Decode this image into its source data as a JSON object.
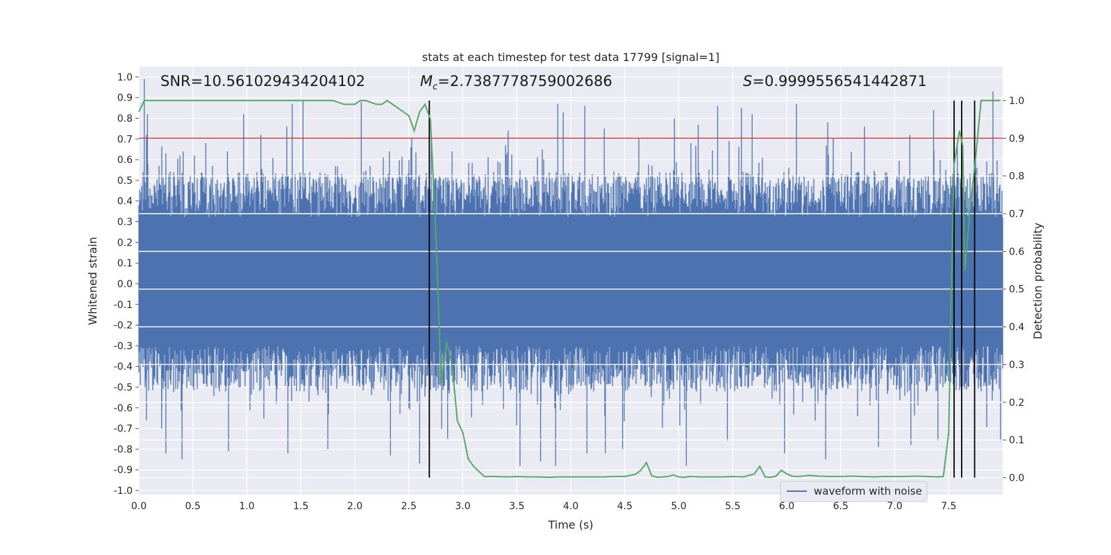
{
  "chart_data": {
    "type": "line",
    "title": "stats at each timestep for test data 17799 [signal=1]",
    "xlabel": "Time (s)",
    "ylabel": "Whitened strain",
    "y2label": "Detection probability",
    "xlim": [
      0.0,
      8.0
    ],
    "ylim": [
      -1.02,
      1.05
    ],
    "y2lim": [
      -0.045,
      1.09
    ],
    "x_ticks": [
      "0.0",
      "0.5",
      "1.0",
      "1.5",
      "2.0",
      "2.5",
      "3.0",
      "3.5",
      "4.0",
      "4.5",
      "5.0",
      "5.5",
      "6.0",
      "6.5",
      "7.0",
      "7.5"
    ],
    "y_ticks": [
      "1.0",
      "0.9",
      "0.8",
      "0.7",
      "0.6",
      "0.5",
      "0.4",
      "0.3",
      "0.2",
      "0.1",
      "0.0",
      "-0.1",
      "-0.2",
      "-0.3",
      "-0.4",
      "-0.5",
      "-0.6",
      "-0.7",
      "-0.8",
      "-0.9",
      "-1.0"
    ],
    "y2_ticks": [
      "1.0",
      "0.9",
      "0.8",
      "0.7",
      "0.6",
      "0.5",
      "0.4",
      "0.3",
      "0.2",
      "0.1",
      "0.0"
    ],
    "grid": true,
    "legend": {
      "location": "lower-right",
      "entries": [
        "waveform with noise"
      ]
    },
    "annotations": {
      "snr": "SNR=10.561029434204102",
      "mc_symbol": "M",
      "mc_sub": "c",
      "mc_value": "=2.7387778759002686",
      "s_symbol": "S",
      "s_value": "=0.9999556541442871"
    },
    "threshold": {
      "y2": 0.9,
      "color": "#c44e52"
    },
    "vertical_lines_x": [
      2.69,
      7.55,
      7.62,
      7.74
    ],
    "colors": {
      "waveform": "#4c72b0",
      "probability": "#55a868",
      "vlines": "#000000",
      "axes_bg": "#eaeaf2",
      "grid": "#ffffff"
    },
    "series": [
      {
        "name": "waveform with noise",
        "axis": "left",
        "sample_rate_hz": 2048,
        "typical_positive_envelope": 0.42,
        "typical_negative_envelope": -0.4,
        "peaks": [
          [
            0.05,
            0.99
          ],
          [
            0.07,
            0.72
          ],
          [
            0.08,
            0.82
          ],
          [
            0.25,
            0.63
          ],
          [
            0.38,
            0.62
          ],
          [
            0.41,
            0.64
          ],
          [
            0.62,
            0.68
          ],
          [
            0.82,
            0.64
          ],
          [
            0.97,
            0.82
          ],
          [
            1.13,
            0.72
          ],
          [
            1.37,
            0.76
          ],
          [
            1.42,
            0.87
          ],
          [
            1.52,
            0.89
          ],
          [
            2.06,
            0.88
          ],
          [
            2.32,
            0.64
          ],
          [
            2.52,
            0.66
          ],
          [
            2.9,
            0.64
          ],
          [
            3.42,
            0.74
          ],
          [
            3.88,
            0.87
          ],
          [
            3.93,
            0.83
          ],
          [
            4.13,
            0.86
          ],
          [
            4.31,
            0.75
          ],
          [
            4.63,
            0.7
          ],
          [
            4.96,
            0.8
          ],
          [
            5.18,
            0.77
          ],
          [
            5.36,
            0.86
          ],
          [
            5.58,
            0.85
          ],
          [
            5.68,
            0.82
          ],
          [
            6.09,
            0.87
          ],
          [
            6.38,
            0.78
          ],
          [
            6.72,
            0.76
          ],
          [
            7.14,
            0.72
          ],
          [
            7.36,
            0.84
          ],
          [
            7.58,
            0.66
          ],
          [
            7.91,
            0.93
          ],
          [
            0.07,
            -0.66
          ],
          [
            0.21,
            -0.7
          ],
          [
            0.25,
            -0.82
          ],
          [
            0.4,
            -0.85
          ],
          [
            0.83,
            -0.81
          ],
          [
            1.38,
            -0.82
          ],
          [
            1.75,
            -0.8
          ],
          [
            2.33,
            -0.83
          ],
          [
            2.6,
            -0.87
          ],
          [
            2.86,
            -0.75
          ],
          [
            3.53,
            -0.88
          ],
          [
            3.72,
            -0.86
          ],
          [
            3.86,
            -0.88
          ],
          [
            4.15,
            -0.82
          ],
          [
            4.32,
            -0.82
          ],
          [
            4.48,
            -0.8
          ],
          [
            5.07,
            -0.88
          ],
          [
            5.45,
            -0.76
          ],
          [
            5.98,
            -0.82
          ],
          [
            6.36,
            -0.85
          ],
          [
            6.85,
            -0.79
          ],
          [
            7.15,
            -0.78
          ],
          [
            7.4,
            -0.76
          ],
          [
            7.98,
            -0.76
          ]
        ]
      },
      {
        "name": "",
        "axis": "right",
        "x": [
          0.0,
          0.05,
          0.1,
          0.2,
          0.4,
          0.6,
          0.8,
          1.0,
          1.2,
          1.4,
          1.6,
          1.8,
          1.9,
          2.0,
          2.05,
          2.1,
          2.2,
          2.25,
          2.3,
          2.4,
          2.5,
          2.55,
          2.6,
          2.65,
          2.7,
          2.75,
          2.8,
          2.85,
          2.9,
          2.95,
          3.0,
          3.05,
          3.1,
          3.2,
          3.3,
          3.4,
          3.5,
          3.6,
          3.7,
          3.8,
          3.9,
          4.0,
          4.1,
          4.2,
          4.3,
          4.4,
          4.5,
          4.6,
          4.65,
          4.7,
          4.75,
          4.8,
          4.85,
          4.9,
          4.95,
          5.0,
          5.05,
          5.1,
          5.2,
          5.3,
          5.4,
          5.5,
          5.6,
          5.7,
          5.75,
          5.8,
          5.85,
          5.9,
          5.95,
          6.0,
          6.05,
          6.1,
          6.15,
          6.2,
          6.3,
          6.4,
          6.5,
          6.6,
          6.7,
          6.8,
          6.9,
          7.0,
          7.1,
          7.2,
          7.3,
          7.4,
          7.45,
          7.5,
          7.52,
          7.55,
          7.6,
          7.63,
          7.65,
          7.7,
          7.75,
          7.8,
          7.85,
          7.9,
          7.95,
          7.98
        ],
        "values": [
          0.97,
          1.0,
          1.0,
          1.0,
          1.0,
          1.0,
          1.0,
          1.0,
          1.0,
          1.0,
          1.0,
          1.0,
          0.99,
          0.99,
          1.0,
          1.0,
          0.99,
          0.99,
          1.0,
          0.98,
          0.96,
          0.92,
          0.97,
          0.99,
          0.95,
          0.65,
          0.25,
          0.36,
          0.3,
          0.15,
          0.12,
          0.05,
          0.03,
          0.003,
          0.003,
          0.002,
          0.003,
          0.002,
          0.002,
          0.001,
          0.002,
          0.002,
          0.002,
          0.002,
          0.002,
          0.003,
          0.003,
          0.009,
          0.02,
          0.04,
          0.005,
          0.001,
          0.002,
          0.003,
          0.007,
          0.002,
          0.001,
          0.003,
          0.002,
          0.002,
          0.002,
          0.003,
          0.002,
          0.01,
          0.03,
          0.002,
          0.001,
          0.004,
          0.02,
          0.01,
          0.004,
          0.003,
          0.004,
          0.006,
          0.004,
          0.003,
          0.003,
          0.004,
          0.003,
          0.002,
          0.003,
          0.003,
          0.003,
          0.004,
          0.003,
          0.002,
          0.003,
          0.12,
          0.45,
          0.83,
          0.92,
          0.88,
          0.55,
          0.72,
          0.85,
          1.0,
          1.0,
          1.0,
          1.0,
          1.0
        ]
      }
    ]
  }
}
